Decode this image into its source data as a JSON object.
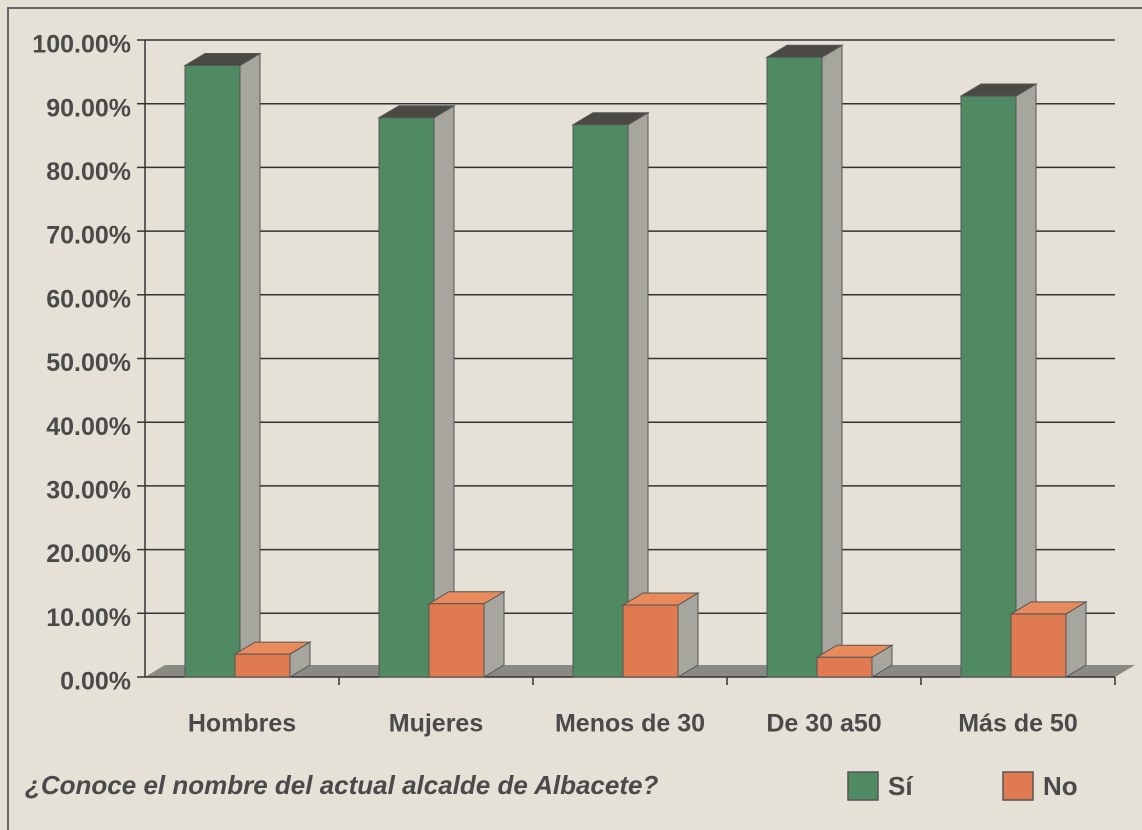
{
  "chart_data": {
    "type": "bar3d",
    "title": "¿Conoce el nombre del actual alcalde de Albacete?",
    "categories": [
      "Hombres",
      "Mujeres",
      "Menos de 30",
      "De 30 a50",
      "Más de 50"
    ],
    "series": [
      {
        "name": "Sí",
        "color": "#4f8a63",
        "values": [
          96,
          87.8,
          86.7,
          97.3,
          91.2
        ]
      },
      {
        "name": "No",
        "color": "#e07a50",
        "values": [
          3.6,
          11.5,
          11.3,
          3.1,
          9.9
        ]
      }
    ],
    "ylim": [
      0,
      100
    ],
    "yticks": [
      {
        "value": 0,
        "label": "0.00%"
      },
      {
        "value": 10,
        "label": "10.00%"
      },
      {
        "value": 20,
        "label": "20.00%"
      },
      {
        "value": 30,
        "label": "30.00%"
      },
      {
        "value": 40,
        "label": "40.00%"
      },
      {
        "value": 50,
        "label": "50.00%"
      },
      {
        "value": 60,
        "label": "60.00%"
      },
      {
        "value": 70,
        "label": "70.00%"
      },
      {
        "value": 80,
        "label": "80.00%"
      },
      {
        "value": 90,
        "label": "90.00%"
      },
      {
        "value": 100,
        "label": "100.00%"
      }
    ],
    "grid": true
  }
}
